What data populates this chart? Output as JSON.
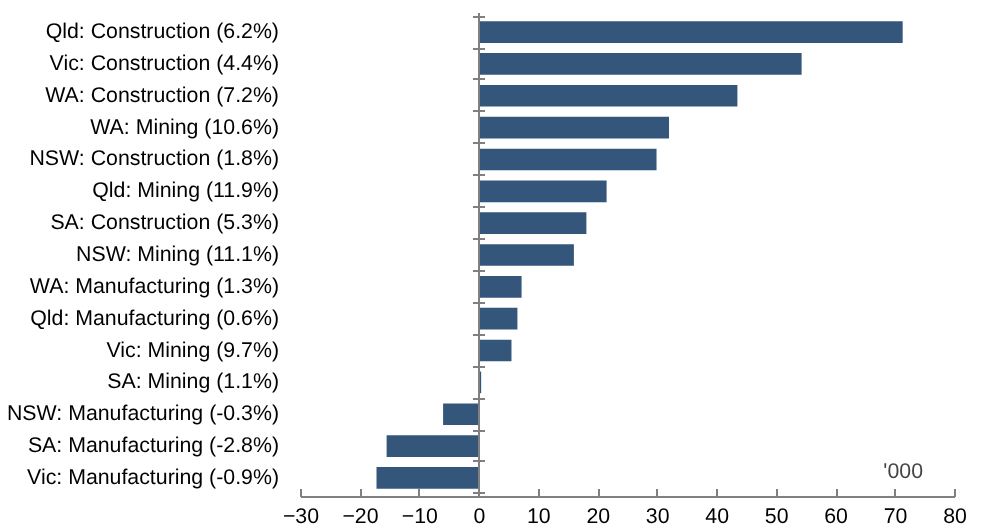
{
  "chart_data": {
    "type": "bar",
    "orientation": "horizontal",
    "categories": [
      "Qld: Construction (6.2%)",
      "Vic: Construction (4.4%)",
      "WA: Construction (7.2%)",
      "WA: Mining (10.6%)",
      "NSW: Construction (1.8%)",
      "Qld: Mining (11.9%)",
      "SA: Construction (5.3%)",
      "NSW: Mining (11.1%)",
      "WA: Manufacturing (1.3%)",
      "Qld: Manufacturing (0.6%)",
      "Vic: Mining (9.7%)",
      "SA: Mining (1.1%)",
      "NSW: Manufacturing (-0.3%)",
      "SA: Manufacturing (-2.8%)",
      "Vic: Manufacturing (-0.9%)"
    ],
    "values": [
      71.2,
      54.2,
      43.4,
      31.9,
      29.8,
      21.4,
      18.0,
      15.9,
      7.1,
      6.4,
      5.4,
      0.3,
      -6.1,
      -15.6,
      -17.3
    ],
    "color": "#34567a",
    "xlim": [
      -30,
      80
    ],
    "xticks": [
      -30,
      -20,
      -10,
      0,
      10,
      20,
      30,
      40,
      50,
      60,
      70,
      80
    ],
    "annotations": [
      "'000"
    ]
  }
}
